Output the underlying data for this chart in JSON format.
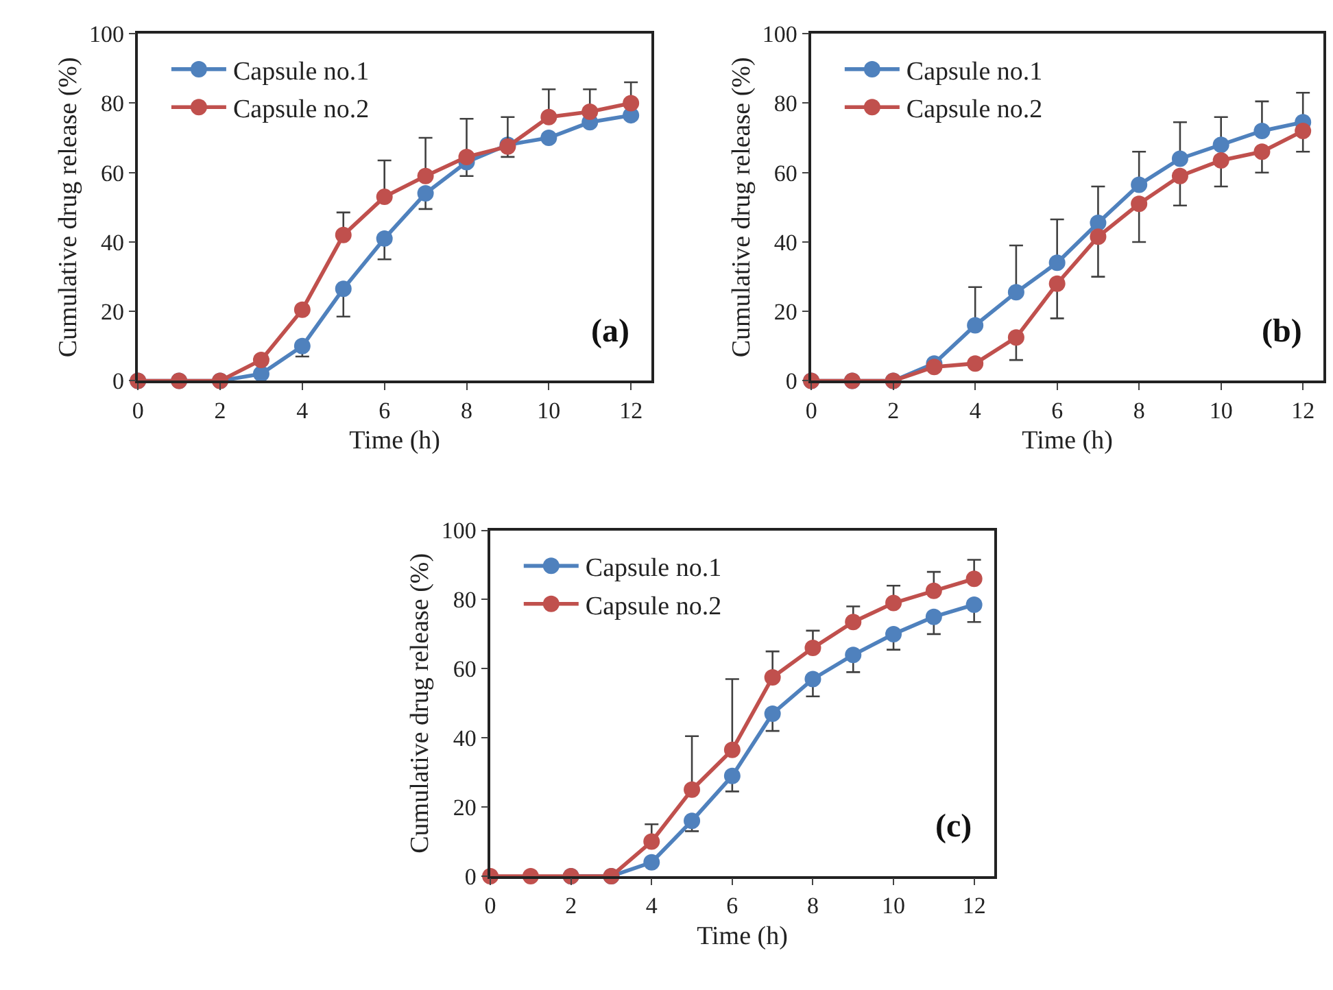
{
  "chart_data": [
    {
      "type": "line",
      "xlabel": "Time (h)",
      "ylabel": "Cumulative drug release (%)",
      "annotations": [
        "(a)"
      ],
      "x": [
        0,
        1,
        2,
        3,
        4,
        5,
        6,
        7,
        8,
        9,
        10,
        11,
        12
      ],
      "xlim": [
        0,
        12.5
      ],
      "xticks": [
        0,
        2,
        4,
        6,
        8,
        10,
        12
      ],
      "ylim": [
        0,
        100
      ],
      "yticks": [
        0,
        20,
        40,
        60,
        80,
        100
      ],
      "legend": "top left",
      "marker": "circle",
      "line_style": "solid",
      "series": [
        {
          "name": "Capsule no.1",
          "color": "#4f81bd",
          "values": [
            0,
            0,
            0,
            2,
            10,
            26.5,
            41,
            54,
            63,
            68,
            70,
            74.5,
            76.5
          ],
          "errors": [
            null,
            null,
            null,
            null,
            [
              7,
              10
            ],
            [
              18.5,
              26.5
            ],
            [
              35,
              41
            ],
            [
              49.5,
              54
            ],
            [
              59,
              63
            ],
            [
              64.5,
              68
            ],
            null,
            null,
            null
          ]
        },
        {
          "name": "Capsule no.2",
          "color": "#c0504d",
          "values": [
            0,
            0,
            0,
            6,
            20.5,
            42,
            53,
            59,
            64.5,
            67.5,
            76,
            77.5,
            80
          ],
          "errors": [
            null,
            null,
            null,
            null,
            null,
            [
              42,
              48.5
            ],
            [
              53,
              63.5
            ],
            [
              59,
              70
            ],
            [
              64.5,
              75.5
            ],
            [
              67.5,
              76
            ],
            [
              76,
              84
            ],
            [
              77.5,
              84
            ],
            [
              80,
              86
            ]
          ]
        }
      ]
    },
    {
      "type": "line",
      "xlabel": "Time (h)",
      "ylabel": "Cumulative drug release (%)",
      "annotations": [
        "(b)"
      ],
      "x": [
        0,
        1,
        2,
        3,
        4,
        5,
        6,
        7,
        8,
        9,
        10,
        11,
        12
      ],
      "xlim": [
        0,
        12.5
      ],
      "xticks": [
        0,
        2,
        4,
        6,
        8,
        10,
        12
      ],
      "ylim": [
        0,
        100
      ],
      "yticks": [
        0,
        20,
        40,
        60,
        80,
        100
      ],
      "legend": "top left",
      "marker": "circle",
      "line_style": "solid",
      "series": [
        {
          "name": "Capsule no.1",
          "color": "#4f81bd",
          "values": [
            0,
            0,
            0,
            5,
            16,
            25.5,
            34,
            45.5,
            56.5,
            64,
            68,
            72,
            74.5
          ],
          "errors": [
            null,
            null,
            null,
            null,
            [
              16,
              27
            ],
            [
              25.5,
              39
            ],
            [
              34,
              46.5
            ],
            [
              45.5,
              56
            ],
            [
              56.5,
              66
            ],
            [
              64,
              74.5
            ],
            [
              68,
              76
            ],
            [
              72,
              80.5
            ],
            [
              74.5,
              83
            ]
          ]
        },
        {
          "name": "Capsule no.2",
          "color": "#c0504d",
          "values": [
            0,
            0,
            0,
            4,
            5,
            12.5,
            28,
            41.5,
            51,
            59,
            63.5,
            66,
            72
          ],
          "errors": [
            null,
            null,
            null,
            null,
            null,
            [
              6,
              12.5
            ],
            [
              18,
              28
            ],
            [
              30,
              41.5
            ],
            [
              40,
              51
            ],
            [
              50.5,
              59
            ],
            [
              56,
              63.5
            ],
            [
              60,
              66
            ],
            [
              66,
              72
            ]
          ]
        }
      ]
    },
    {
      "type": "line",
      "xlabel": "Time (h)",
      "ylabel": "Cumulative drug release (%)",
      "annotations": [
        "(c)"
      ],
      "x": [
        0,
        1,
        2,
        3,
        4,
        5,
        6,
        7,
        8,
        9,
        10,
        11,
        12
      ],
      "xlim": [
        0,
        12.5
      ],
      "xticks": [
        0,
        2,
        4,
        6,
        8,
        10,
        12
      ],
      "ylim": [
        0,
        100
      ],
      "yticks": [
        0,
        20,
        40,
        60,
        80,
        100
      ],
      "legend": "top left",
      "marker": "circle",
      "line_style": "solid",
      "series": [
        {
          "name": "Capsule no.1",
          "color": "#4f81bd",
          "values": [
            null,
            null,
            0,
            0,
            4,
            16,
            29,
            47,
            57,
            64,
            70,
            75,
            78.5
          ],
          "errors": [
            null,
            null,
            null,
            null,
            null,
            [
              13,
              16
            ],
            [
              24.5,
              29
            ],
            [
              42,
              47
            ],
            [
              52,
              57
            ],
            [
              59,
              64
            ],
            [
              65.5,
              70
            ],
            [
              70,
              75
            ],
            [
              73.5,
              78.5
            ]
          ]
        },
        {
          "name": "Capsule no.2",
          "color": "#c0504d",
          "values": [
            0,
            0,
            0,
            0,
            10,
            25,
            36.5,
            57.5,
            66,
            73.5,
            79,
            82.5,
            86
          ],
          "errors": [
            null,
            null,
            null,
            null,
            [
              10,
              15
            ],
            [
              25,
              40.5
            ],
            [
              36.5,
              57
            ],
            [
              57.5,
              65
            ],
            [
              66,
              71
            ],
            [
              73.5,
              78
            ],
            [
              79,
              84
            ],
            [
              82.5,
              88
            ],
            [
              86,
              91.5
            ]
          ]
        }
      ]
    }
  ]
}
